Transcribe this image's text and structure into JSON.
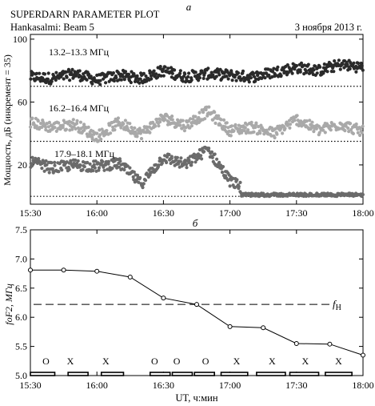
{
  "chart_data": [
    {
      "panel_label": "а",
      "type": "scatter",
      "header_left": "SUPERDARN PARAMETER PLOT",
      "station": "Hankasalmi: Beam 5",
      "date": "3 ноября 2013 г.",
      "ylabel": "Мощность, дБ (инкремент = 35)",
      "xlim": [
        "15:30",
        "18:00"
      ],
      "ylim": [
        -5,
        103
      ],
      "yticks": [
        "20",
        "60",
        "100"
      ],
      "ytick_values": [
        20,
        60,
        100
      ],
      "xtick_labels": [
        "15:30",
        "16:00",
        "16:30",
        "17:00",
        "17:30",
        "18:00"
      ],
      "series": [
        {
          "name": "13.2–13.3 МГц",
          "color": "#2a2a2a",
          "baseline": 70,
          "level": 76,
          "profile_x": [
            "15:30",
            "15:40",
            "15:50",
            "16:00",
            "16:10",
            "16:20",
            "16:30",
            "16:40",
            "16:50",
            "17:00",
            "17:10",
            "17:20",
            "17:30",
            "17:40",
            "17:50",
            "18:00"
          ],
          "profile_y": [
            76,
            75,
            78,
            74,
            77,
            75,
            80,
            76,
            78,
            77,
            76,
            79,
            82,
            80,
            84,
            82
          ]
        },
        {
          "name": "16.2–16.4 МГц",
          "color": "#a9a9a9",
          "baseline": 35,
          "level": 48,
          "profile_x": [
            "15:30",
            "15:40",
            "15:50",
            "16:00",
            "16:10",
            "16:20",
            "16:30",
            "16:40",
            "16:50",
            "17:00",
            "17:10",
            "17:20",
            "17:30",
            "17:40",
            "17:50",
            "18:00"
          ],
          "profile_y": [
            47,
            44,
            46,
            38,
            47,
            40,
            50,
            45,
            54,
            42,
            44,
            40,
            49,
            42,
            46,
            41
          ]
        },
        {
          "name": "17.9–18.1 МГц",
          "color": "#6b6b6b",
          "baseline": 0,
          "level": 20,
          "profile_x": [
            "15:30",
            "15:40",
            "15:50",
            "16:00",
            "16:10",
            "16:20",
            "16:30",
            "16:40",
            "16:50",
            "17:00",
            "17:10",
            "17:20",
            "17:30",
            "17:40",
            "17:50",
            "18:00"
          ],
          "profile_y": [
            22,
            18,
            20,
            19,
            21,
            8,
            25,
            20,
            30,
            10,
            2,
            1,
            1,
            0,
            0,
            0
          ]
        }
      ]
    },
    {
      "panel_label": "б",
      "type": "line",
      "xlabel": "UT, ч:мин",
      "ylabel": "foF2, МГц",
      "xlim": [
        "15:30",
        "18:00"
      ],
      "ylim": [
        5.0,
        7.5
      ],
      "yticks": [
        "5.0",
        "5.5",
        "6.0",
        "6.5",
        "7.0",
        "7.5"
      ],
      "ytick_values": [
        5.0,
        5.5,
        6.0,
        6.5,
        7.0,
        7.5
      ],
      "xtick_labels": [
        "15:30",
        "16:00",
        "16:30",
        "17:00",
        "17:30",
        "18:00"
      ],
      "x": [
        "15:30",
        "15:45",
        "16:00",
        "16:15",
        "16:30",
        "16:45",
        "17:00",
        "17:15",
        "17:30",
        "17:45",
        "18:00"
      ],
      "values": [
        6.81,
        6.81,
        6.79,
        6.69,
        6.33,
        6.22,
        5.84,
        5.82,
        5.55,
        5.54,
        5.35
      ],
      "reference_line": {
        "label": "f",
        "subscript": "H",
        "value": 6.22,
        "style": "dashed"
      },
      "modes": [
        {
          "label": "O",
          "time": "15:37"
        },
        {
          "label": "X",
          "time": "15:48"
        },
        {
          "label": "X",
          "time": "16:04"
        },
        {
          "label": "O",
          "time": "16:26"
        },
        {
          "label": "O",
          "time": "16:36"
        },
        {
          "label": "O",
          "time": "16:49"
        },
        {
          "label": "X",
          "time": "17:03"
        },
        {
          "label": "X",
          "time": "17:19"
        },
        {
          "label": "X",
          "time": "17:34"
        },
        {
          "label": "X",
          "time": "17:49"
        }
      ],
      "mode_bars": [
        [
          "15:30",
          "15:41"
        ],
        [
          "15:47",
          "15:56"
        ],
        [
          "16:02",
          "16:12"
        ],
        [
          "16:24",
          "16:33"
        ],
        [
          "16:34",
          "16:43"
        ],
        [
          "16:44",
          "16:53"
        ],
        [
          "16:56",
          "17:08"
        ],
        [
          "17:12",
          "17:25"
        ],
        [
          "17:27",
          "17:40"
        ],
        [
          "17:43",
          "17:55"
        ]
      ]
    }
  ]
}
